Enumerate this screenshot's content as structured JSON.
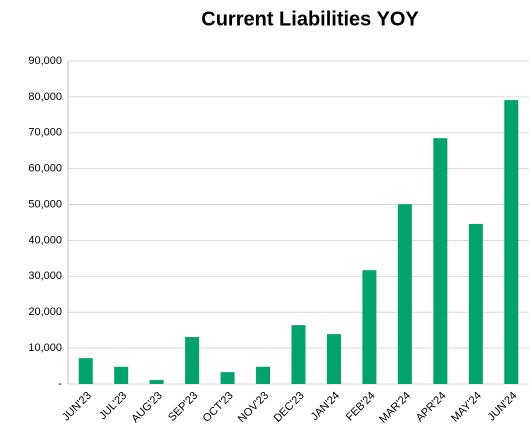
{
  "chart_data": {
    "type": "bar",
    "title": "Current Liabilities YOY",
    "categories": [
      "JUN'23",
      "JUL'23",
      "AUG'23",
      "SEP'23",
      "OCT'23",
      "NOV'23",
      "DEC'23",
      "JAN'24",
      "FEB'24",
      "MAR'24",
      "APR'24",
      "MAY'24",
      "JUN'24"
    ],
    "values": [
      7200,
      4800,
      1100,
      13100,
      3300,
      4800,
      16400,
      13900,
      31700,
      50100,
      68500,
      44600,
      79100
    ],
    "color": "#00a36c",
    "ylim": [
      0,
      90000
    ],
    "yticks": [
      {
        "value": 0,
        "label": "-"
      },
      {
        "value": 10000,
        "label": "10,000"
      },
      {
        "value": 20000,
        "label": "20,000"
      },
      {
        "value": 30000,
        "label": "30,000"
      },
      {
        "value": 40000,
        "label": "40,000"
      },
      {
        "value": 50000,
        "label": "50,000"
      },
      {
        "value": 60000,
        "label": "60,000"
      },
      {
        "value": 70000,
        "label": "70,000"
      },
      {
        "value": 80000,
        "label": "80,000"
      },
      {
        "value": 90000,
        "label": "90,000"
      }
    ],
    "grid": true
  }
}
